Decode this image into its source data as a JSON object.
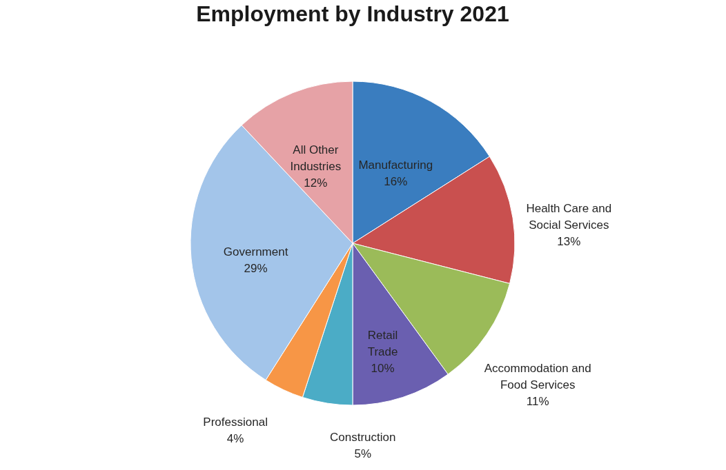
{
  "chart_data": {
    "type": "pie",
    "title": "Employment by Industry 2021",
    "categories": [
      "Manufacturing",
      "Health Care and Social Services",
      "Accommodation and Food Services",
      "Retail Trade",
      "Construction",
      "Professional",
      "Government",
      "All Other Industries"
    ],
    "values": [
      16,
      13,
      11,
      10,
      5,
      4,
      29,
      12
    ],
    "value_labels": [
      "16%",
      "13%",
      "11%",
      "10%",
      "5%",
      "4%",
      "29%",
      "12%"
    ],
    "colors": [
      "#3a7dbf",
      "#c9504f",
      "#9bbb59",
      "#6a5fb0",
      "#4bacc6",
      "#f79646",
      "#a3c5ea",
      "#e6a2a6"
    ],
    "legend": false
  }
}
